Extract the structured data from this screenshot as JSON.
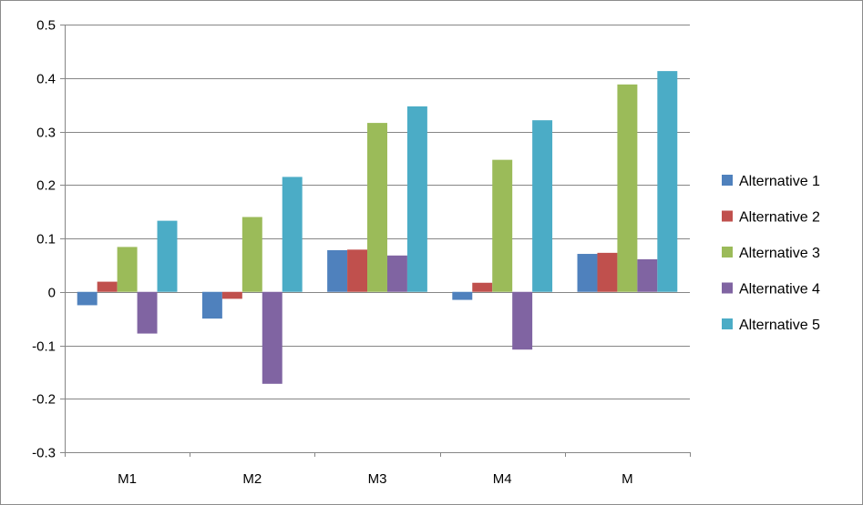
{
  "chart_data": {
    "type": "bar",
    "categories": [
      "M1",
      "M2",
      "M3",
      "M4",
      "M"
    ],
    "ylim": [
      -0.3,
      0.5
    ],
    "yticks": [
      "0.5",
      "0.4",
      "0.3",
      "0.2",
      "0.1",
      "0",
      "-0.1",
      "-0.2",
      "-0.3"
    ],
    "ytick_values": [
      0.5,
      0.4,
      0.3,
      0.2,
      0.1,
      0,
      -0.1,
      -0.2,
      -0.3
    ],
    "grid": true,
    "legend_position": "right",
    "series": [
      {
        "name": "Alternative 1",
        "color": "#4f81bd",
        "values": [
          -0.025,
          -0.05,
          0.078,
          -0.015,
          0.071
        ]
      },
      {
        "name": "Alternative 2",
        "color": "#c0504d",
        "values": [
          0.019,
          -0.013,
          0.079,
          0.017,
          0.073
        ]
      },
      {
        "name": "Alternative 3",
        "color": "#9bbb59",
        "values": [
          0.084,
          0.14,
          0.316,
          0.247,
          0.388
        ]
      },
      {
        "name": "Alternative 4",
        "color": "#8064a2",
        "values": [
          -0.078,
          -0.172,
          0.068,
          -0.108,
          0.061
        ]
      },
      {
        "name": "Alternative 5",
        "color": "#4bacc6",
        "values": [
          0.133,
          0.215,
          0.347,
          0.321,
          0.413
        ]
      }
    ]
  }
}
